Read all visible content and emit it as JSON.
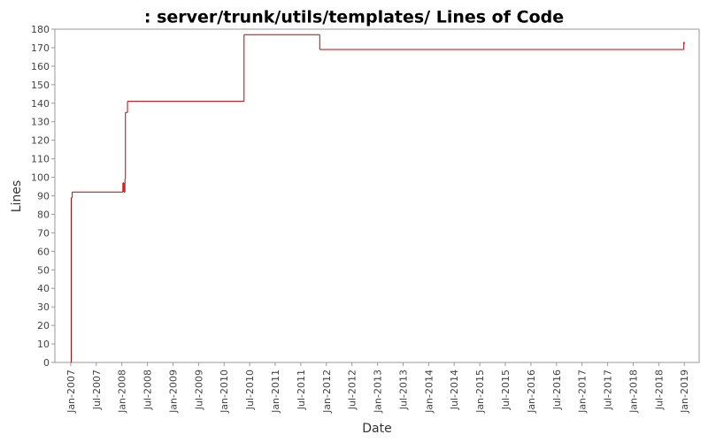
{
  "chart_data": {
    "type": "step-line",
    "title": ": server/trunk/utils/templates/ Lines of Code",
    "x_label": "Date",
    "y_label": "Lines",
    "x": [
      2007.0,
      2007.01,
      2007.03,
      2008.02,
      2008.04,
      2008.06,
      2008.07,
      2008.11,
      2010.39,
      2011.87,
      2018.99,
      2019.0
    ],
    "series": [
      {
        "name": "Lines",
        "color": "#c00000",
        "values": [
          0,
          89,
          92,
          97,
          92,
          99,
          135,
          141,
          177,
          169,
          173,
          172
        ]
      }
    ],
    "xlim": [
      2006.69,
      2019.29
    ],
    "xticks": [
      {
        "value": 2007,
        "label": "Jan-2007"
      },
      {
        "value": 2007.5,
        "label": "Jul-2007"
      },
      {
        "value": 2008,
        "label": "Jan-2008"
      },
      {
        "value": 2008.5,
        "label": "Jul-2008"
      },
      {
        "value": 2009,
        "label": "Jan-2009"
      },
      {
        "value": 2009.5,
        "label": "Jul-2009"
      },
      {
        "value": 2010,
        "label": "Jan-2010"
      },
      {
        "value": 2010.5,
        "label": "Jul-2010"
      },
      {
        "value": 2011,
        "label": "Jan-2011"
      },
      {
        "value": 2011.5,
        "label": "Jul-2011"
      },
      {
        "value": 2012,
        "label": "Jan-2012"
      },
      {
        "value": 2012.5,
        "label": "Jul-2012"
      },
      {
        "value": 2013,
        "label": "Jan-2013"
      },
      {
        "value": 2013.5,
        "label": "Jul-2013"
      },
      {
        "value": 2014,
        "label": "Jan-2014"
      },
      {
        "value": 2014.5,
        "label": "Jul-2014"
      },
      {
        "value": 2015,
        "label": "Jan-2015"
      },
      {
        "value": 2015.5,
        "label": "Jul-2015"
      },
      {
        "value": 2016,
        "label": "Jan-2016"
      },
      {
        "value": 2016.5,
        "label": "Jul-2016"
      },
      {
        "value": 2017,
        "label": "Jan-2017"
      },
      {
        "value": 2017.5,
        "label": "Jul-2017"
      },
      {
        "value": 2018,
        "label": "Jan-2018"
      },
      {
        "value": 2018.5,
        "label": "Jul-2018"
      },
      {
        "value": 2019,
        "label": "Jan-2019"
      }
    ],
    "ylim": [
      0,
      180
    ],
    "yticks": [
      0,
      10,
      20,
      30,
      40,
      50,
      60,
      70,
      80,
      90,
      100,
      110,
      120,
      130,
      140,
      150,
      160,
      170,
      180
    ],
    "grid": false
  }
}
